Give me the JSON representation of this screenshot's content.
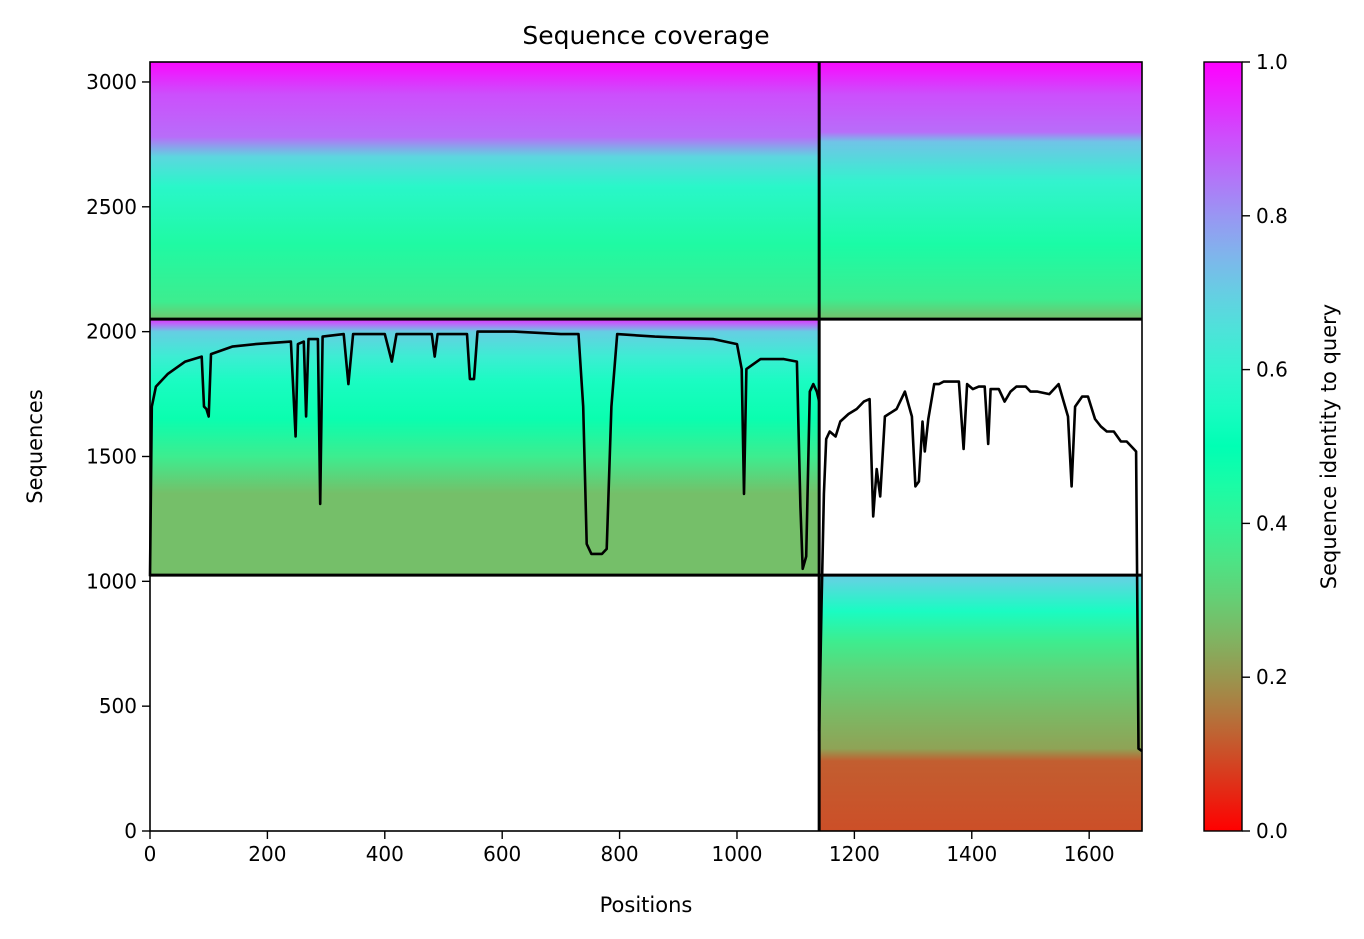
{
  "chart_data": {
    "type": "heatmap",
    "title": "Sequence coverage",
    "xlabel": "Positions",
    "ylabel": "Sequences",
    "xlim": [
      0,
      1690
    ],
    "ylim": [
      0,
      3080
    ],
    "x_ticks": [
      0,
      200,
      400,
      600,
      800,
      1000,
      1200,
      1400,
      1600
    ],
    "y_ticks": [
      0,
      500,
      1000,
      1500,
      2000,
      2500,
      3000
    ],
    "x_tick_labels": [
      "0",
      "200",
      "400",
      "600",
      "800",
      "1000",
      "1200",
      "1400",
      "1600"
    ],
    "y_tick_labels": [
      "0",
      "500",
      "1000",
      "1500",
      "2000",
      "2500",
      "3000"
    ],
    "colorbar": {
      "label": "Sequence identity to query",
      "range": [
        0,
        1
      ],
      "ticks": [
        0.0,
        0.2,
        0.4,
        0.6,
        0.8,
        1.0
      ],
      "tick_labels": [
        "0.0",
        "0.2",
        "0.4",
        "0.6",
        "0.8",
        "1.0"
      ],
      "colormap": "rainbow_r"
    },
    "domain_boundary_x": 1140,
    "row_boundaries_y": [
      1025,
      2050
    ],
    "blocks": [
      {
        "x_range": [
          0,
          1140
        ],
        "y_range": [
          2050,
          3080
        ],
        "identity_stops": [
          {
            "y": 2050,
            "identity": 0.28
          },
          {
            "y": 2120,
            "identity": 0.38
          },
          {
            "y": 2350,
            "identity": 0.44
          },
          {
            "y": 2580,
            "identity": 0.58
          },
          {
            "y": 2700,
            "identity": 0.68
          },
          {
            "y": 2780,
            "identity": 0.86
          },
          {
            "y": 2950,
            "identity": 0.9
          },
          {
            "y": 3080,
            "identity": 0.99
          }
        ]
      },
      {
        "x_range": [
          1140,
          1690
        ],
        "y_range": [
          2050,
          3080
        ],
        "identity_stops": [
          {
            "y": 2050,
            "identity": 0.27
          },
          {
            "y": 2130,
            "identity": 0.38
          },
          {
            "y": 2350,
            "identity": 0.45
          },
          {
            "y": 2600,
            "identity": 0.6
          },
          {
            "y": 2760,
            "identity": 0.72
          },
          {
            "y": 2800,
            "identity": 0.86
          },
          {
            "y": 2950,
            "identity": 0.9
          },
          {
            "y": 3080,
            "identity": 0.99
          }
        ]
      },
      {
        "x_range": [
          0,
          1140
        ],
        "y_range": [
          1025,
          2050
        ],
        "identity_stops": [
          {
            "y": 1025,
            "identity": 0.27
          },
          {
            "y": 1350,
            "identity": 0.27
          },
          {
            "y": 1500,
            "identity": 0.38
          },
          {
            "y": 1650,
            "identity": 0.48
          },
          {
            "y": 1800,
            "identity": 0.55
          },
          {
            "y": 1900,
            "identity": 0.62
          },
          {
            "y": 2000,
            "identity": 0.7
          },
          {
            "y": 2030,
            "identity": 0.86
          },
          {
            "y": 2050,
            "identity": 0.94
          }
        ]
      },
      {
        "x_range": [
          1140,
          1690
        ],
        "y_range": [
          0,
          1025
        ],
        "identity_stops": [
          {
            "y": 0,
            "identity": 0.1
          },
          {
            "y": 280,
            "identity": 0.12
          },
          {
            "y": 330,
            "identity": 0.22
          },
          {
            "y": 480,
            "identity": 0.26
          },
          {
            "y": 650,
            "identity": 0.32
          },
          {
            "y": 760,
            "identity": 0.38
          },
          {
            "y": 880,
            "identity": 0.55
          },
          {
            "y": 1000,
            "identity": 0.68
          },
          {
            "y": 1025,
            "identity": 0.7
          }
        ]
      }
    ],
    "coverage_series": [
      {
        "x_range": [
          0,
          1140
        ],
        "points": [
          [
            0,
            1020
          ],
          [
            3,
            1700
          ],
          [
            10,
            1780
          ],
          [
            30,
            1830
          ],
          [
            60,
            1880
          ],
          [
            88,
            1900
          ],
          [
            92,
            1700
          ],
          [
            96,
            1690
          ],
          [
            100,
            1660
          ],
          [
            104,
            1910
          ],
          [
            140,
            1940
          ],
          [
            180,
            1950
          ],
          [
            240,
            1960
          ],
          [
            248,
            1580
          ],
          [
            252,
            1950
          ],
          [
            262,
            1960
          ],
          [
            266,
            1660
          ],
          [
            270,
            1970
          ],
          [
            286,
            1970
          ],
          [
            290,
            1310
          ],
          [
            294,
            1980
          ],
          [
            330,
            1990
          ],
          [
            338,
            1790
          ],
          [
            346,
            1990
          ],
          [
            400,
            1990
          ],
          [
            412,
            1880
          ],
          [
            420,
            1990
          ],
          [
            480,
            1990
          ],
          [
            485,
            1900
          ],
          [
            490,
            1990
          ],
          [
            540,
            1990
          ],
          [
            545,
            1810
          ],
          [
            552,
            1810
          ],
          [
            558,
            2000
          ],
          [
            620,
            2000
          ],
          [
            700,
            1990
          ],
          [
            730,
            1990
          ],
          [
            738,
            1700
          ],
          [
            744,
            1150
          ],
          [
            752,
            1110
          ],
          [
            762,
            1110
          ],
          [
            770,
            1110
          ],
          [
            778,
            1130
          ],
          [
            786,
            1700
          ],
          [
            796,
            1990
          ],
          [
            860,
            1980
          ],
          [
            960,
            1970
          ],
          [
            1000,
            1950
          ],
          [
            1008,
            1850
          ],
          [
            1012,
            1350
          ],
          [
            1016,
            1850
          ],
          [
            1040,
            1890
          ],
          [
            1080,
            1890
          ],
          [
            1102,
            1880
          ],
          [
            1108,
            1300
          ],
          [
            1112,
            1050
          ],
          [
            1118,
            1100
          ],
          [
            1124,
            1760
          ],
          [
            1130,
            1790
          ],
          [
            1136,
            1760
          ],
          [
            1140,
            1720
          ]
        ]
      },
      {
        "x_range": [
          1140,
          1690
        ],
        "points": [
          [
            1140,
            400
          ],
          [
            1144,
            900
          ],
          [
            1148,
            1350
          ],
          [
            1152,
            1570
          ],
          [
            1158,
            1600
          ],
          [
            1168,
            1580
          ],
          [
            1176,
            1640
          ],
          [
            1190,
            1670
          ],
          [
            1204,
            1690
          ],
          [
            1216,
            1720
          ],
          [
            1226,
            1730
          ],
          [
            1232,
            1260
          ],
          [
            1238,
            1450
          ],
          [
            1244,
            1340
          ],
          [
            1252,
            1660
          ],
          [
            1272,
            1690
          ],
          [
            1286,
            1760
          ],
          [
            1298,
            1660
          ],
          [
            1304,
            1380
          ],
          [
            1310,
            1400
          ],
          [
            1316,
            1640
          ],
          [
            1320,
            1520
          ],
          [
            1326,
            1650
          ],
          [
            1336,
            1790
          ],
          [
            1344,
            1790
          ],
          [
            1352,
            1800
          ],
          [
            1362,
            1800
          ],
          [
            1372,
            1800
          ],
          [
            1378,
            1800
          ],
          [
            1386,
            1530
          ],
          [
            1392,
            1790
          ],
          [
            1402,
            1770
          ],
          [
            1412,
            1780
          ],
          [
            1422,
            1780
          ],
          [
            1428,
            1550
          ],
          [
            1432,
            1770
          ],
          [
            1446,
            1770
          ],
          [
            1456,
            1720
          ],
          [
            1466,
            1760
          ],
          [
            1476,
            1780
          ],
          [
            1492,
            1780
          ],
          [
            1500,
            1760
          ],
          [
            1512,
            1760
          ],
          [
            1532,
            1750
          ],
          [
            1548,
            1790
          ],
          [
            1564,
            1660
          ],
          [
            1570,
            1380
          ],
          [
            1576,
            1700
          ],
          [
            1588,
            1740
          ],
          [
            1598,
            1740
          ],
          [
            1610,
            1650
          ],
          [
            1620,
            1620
          ],
          [
            1630,
            1600
          ],
          [
            1642,
            1600
          ],
          [
            1654,
            1560
          ],
          [
            1664,
            1560
          ],
          [
            1676,
            1530
          ],
          [
            1680,
            1520
          ],
          [
            1684,
            330
          ],
          [
            1690,
            320
          ]
        ]
      }
    ]
  }
}
